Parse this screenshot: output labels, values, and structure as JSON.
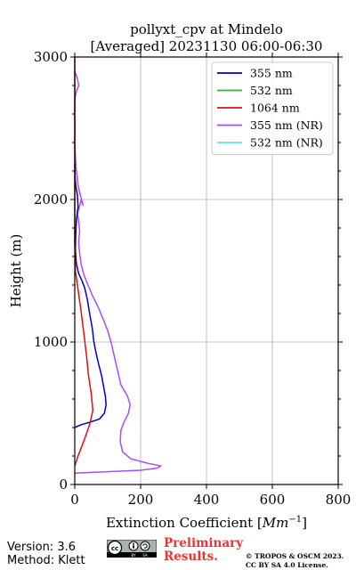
{
  "chart_data": {
    "type": "line",
    "title": "pollyxt_cpv at Mindelo",
    "subtitle": "[Averaged] 20231130 06:00-06:30",
    "xlabel": "Extinction Coefficient [Mm⁻¹]",
    "xlabel_main": "Extinction Coefficient [",
    "xlabel_unit": "Mm",
    "xlabel_exp": "−1",
    "xlabel_close": "]",
    "ylabel": "Height (m)",
    "xlim": [
      0,
      800
    ],
    "ylim": [
      0,
      3000
    ],
    "xticks": [
      0,
      200,
      400,
      600,
      800
    ],
    "yticks": [
      0,
      1000,
      2000,
      3000
    ],
    "grid": true,
    "legend_position": "top-right",
    "series": [
      {
        "name": "355 nm",
        "color": "#0000cc",
        "points": [
          [
            0,
            400
          ],
          [
            20,
            420
          ],
          [
            50,
            440
          ],
          [
            75,
            460
          ],
          [
            90,
            500
          ],
          [
            95,
            560
          ],
          [
            93,
            620
          ],
          [
            88,
            680
          ],
          [
            82,
            760
          ],
          [
            73,
            840
          ],
          [
            65,
            920
          ],
          [
            58,
            1000
          ],
          [
            53,
            1100
          ],
          [
            45,
            1200
          ],
          [
            38,
            1300
          ],
          [
            30,
            1380
          ],
          [
            22,
            1430
          ],
          [
            12,
            1480
          ],
          [
            5,
            1550
          ],
          [
            2,
            1650
          ],
          [
            3,
            1750
          ],
          [
            5,
            1850
          ],
          [
            10,
            1950
          ],
          [
            8,
            2030
          ],
          [
            4,
            2080
          ],
          [
            1,
            2150
          ],
          [
            0,
            2250
          ]
        ]
      },
      {
        "name": "532 nm",
        "color": "#2ab82a",
        "points": []
      },
      {
        "name": "1064 nm",
        "color": "#dd1111",
        "points": [
          [
            0,
            130
          ],
          [
            10,
            200
          ],
          [
            30,
            320
          ],
          [
            45,
            420
          ],
          [
            55,
            520
          ],
          [
            50,
            640
          ],
          [
            42,
            760
          ],
          [
            36,
            900
          ],
          [
            28,
            1050
          ],
          [
            20,
            1200
          ],
          [
            14,
            1300
          ],
          [
            8,
            1400
          ],
          [
            2,
            1500
          ],
          [
            0,
            1700
          ],
          [
            0,
            2000
          ],
          [
            0,
            2200
          ],
          [
            0,
            2500
          ],
          [
            0,
            2800
          ],
          [
            0,
            3000
          ]
        ]
      },
      {
        "name": "355 nm (NR)",
        "color": "#a64dff",
        "points": [
          [
            0,
            80
          ],
          [
            100,
            90
          ],
          [
            200,
            100
          ],
          [
            250,
            115
          ],
          [
            262,
            130
          ],
          [
            220,
            150
          ],
          [
            170,
            180
          ],
          [
            145,
            230
          ],
          [
            138,
            300
          ],
          [
            140,
            380
          ],
          [
            150,
            440
          ],
          [
            163,
            500
          ],
          [
            168,
            560
          ],
          [
            160,
            620
          ],
          [
            150,
            660
          ],
          [
            140,
            700
          ],
          [
            130,
            800
          ],
          [
            120,
            900
          ],
          [
            110,
            1000
          ],
          [
            100,
            1080
          ],
          [
            88,
            1150
          ],
          [
            70,
            1250
          ],
          [
            55,
            1320
          ],
          [
            40,
            1400
          ],
          [
            28,
            1470
          ],
          [
            20,
            1540
          ],
          [
            15,
            1620
          ],
          [
            12,
            1700
          ],
          [
            15,
            1780
          ],
          [
            12,
            1850
          ],
          [
            8,
            1900
          ],
          [
            14,
            1950
          ],
          [
            20,
            2000
          ],
          [
            25,
            1960
          ],
          [
            15,
            2050
          ],
          [
            10,
            2100
          ],
          [
            8,
            2150
          ],
          [
            5,
            2200
          ],
          [
            2,
            2300
          ],
          [
            0,
            2400
          ],
          [
            1,
            2500
          ],
          [
            0,
            2600
          ],
          [
            0,
            2700
          ],
          [
            4,
            2750
          ],
          [
            12,
            2800
          ],
          [
            8,
            2850
          ],
          [
            0,
            2900
          ]
        ]
      },
      {
        "name": "532 nm (NR)",
        "color": "#5ee6e0",
        "points": []
      }
    ]
  },
  "footer": {
    "version": "Version: 3.6",
    "method": "Method: Klett",
    "preliminary_line1": "Preliminary",
    "preliminary_line2": "Results.",
    "copyright_line1": "© TROPOS & OSCM 2023.",
    "copyright_line2": "CC BY SA 4.0 License.",
    "license_badge": "cc-by-sa-icon"
  }
}
